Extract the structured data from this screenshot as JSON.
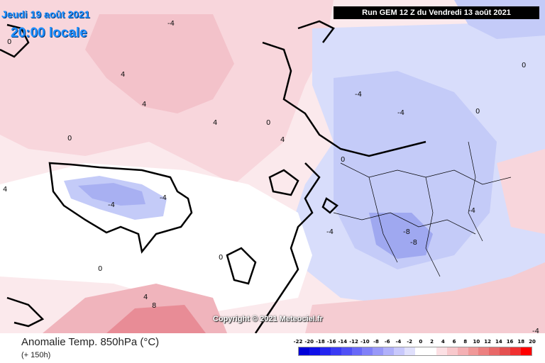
{
  "map": {
    "date": "Jeudi 19 août 2021",
    "time": "20:00 locale",
    "run": "Run GEM 12 Z du Vendredi 13 août 2021",
    "copyright": "Copyright © 2021 Meteociel.fr",
    "parameter": "Anomalie Temp. 850hPa (°C)",
    "lead_time": "(+ 150h)",
    "colors": {
      "cold_strong": "#4a5cf0",
      "cold": "#9fa8f0",
      "cool": "#d6dbfb",
      "neutral": "#ffffff",
      "warm": "#f8d8de",
      "warm_mid": "#f0b0b8",
      "hot": "#e07078",
      "coast": "#000000"
    },
    "isoline_labels": [
      "-4",
      "-4",
      "-4",
      "-4",
      "-4",
      "-4",
      "-4",
      "-4",
      "0",
      "0",
      "0",
      "0",
      "0",
      "0",
      "0",
      "0",
      "4",
      "4",
      "4",
      "4",
      "4",
      "4",
      "8",
      "-8",
      "-8"
    ]
  },
  "legend": {
    "labels": [
      "-22",
      "-20",
      "-18",
      "-16",
      "-14",
      "-12",
      "-10",
      "-8",
      "-6",
      "-4",
      "-2",
      "0",
      "2",
      "4",
      "6",
      "8",
      "10",
      "12",
      "14",
      "16",
      "18",
      "20"
    ],
    "colors": [
      "#0000d8",
      "#1010e8",
      "#2424f0",
      "#3a3af4",
      "#5050f6",
      "#6868f8",
      "#8080f8",
      "#9898f8",
      "#b0b0fa",
      "#c8c8fc",
      "#e0e0fc",
      "#ffffff",
      "#ffffff",
      "#fce0e4",
      "#f8c8cc",
      "#f4b0b4",
      "#f09898",
      "#ec8080",
      "#e86868",
      "#e45050",
      "#f03030",
      "#ff0000"
    ]
  }
}
